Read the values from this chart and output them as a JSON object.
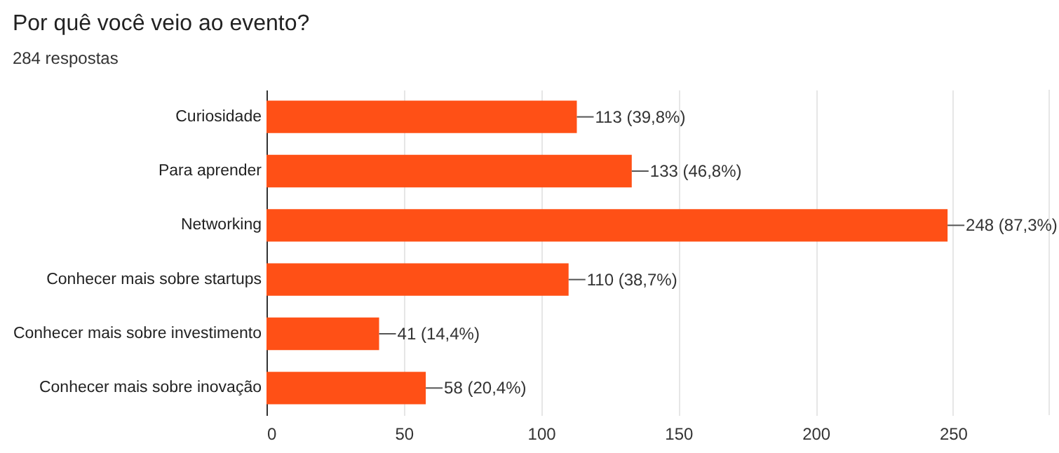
{
  "chart_data": {
    "type": "bar",
    "orientation": "horizontal",
    "title": "Por quê você veio ao evento?",
    "subtitle": "284 respostas",
    "categories": [
      "Curiosidade",
      "Para aprender",
      "Networking",
      "Conhecer mais sobre startups",
      "Conhecer mais sobre investimento",
      "Conhecer mais sobre inovação"
    ],
    "values": [
      113,
      133,
      248,
      110,
      41,
      58
    ],
    "value_labels": [
      "113 (39,8%)",
      "133 (46,8%)",
      "248 (87,3%)",
      "110 (38,7%)",
      "41 (14,4%)",
      "58 (20,4%)"
    ],
    "color": "#ff5016",
    "xlim": [
      0,
      285
    ],
    "xticks": [
      0,
      50,
      100,
      150,
      200,
      250
    ],
    "grid": "x"
  }
}
